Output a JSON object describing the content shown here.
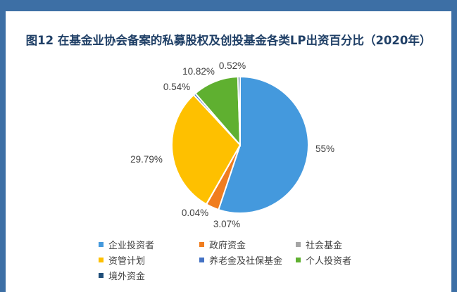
{
  "title": "图12  在基金业协会备案的私募股权及创投基金各类LP出资百分比（2020年）",
  "chart_data": {
    "type": "pie",
    "title": "图12  在基金业协会备案的私募股权及创投基金各类LP出资百分比（2020年）",
    "start_angle_deg": 0,
    "direction": "clockwise",
    "legend_position": "bottom",
    "slices": [
      {
        "name": "企业投资者",
        "value": 55.0,
        "label": "55%",
        "color": "#4499dd"
      },
      {
        "name": "政府资金",
        "value": 3.07,
        "label": "3.07%",
        "color": "#f07d1f"
      },
      {
        "name": "社会基金",
        "value": 0.04,
        "label": "0.04%",
        "color": "#a5a5a5"
      },
      {
        "name": "资管计划",
        "value": 29.79,
        "label": "29.79%",
        "color": "#fec000"
      },
      {
        "name": "养老金及社保基金",
        "value": 0.54,
        "label": "0.54%",
        "color": "#4472c4"
      },
      {
        "name": "个人投资者",
        "value": 10.82,
        "label": "10.82%",
        "color": "#5fb030"
      },
      {
        "name": "境外资金",
        "value": 0.52,
        "label": "0.52%",
        "color": "#1f4e79"
      }
    ]
  }
}
